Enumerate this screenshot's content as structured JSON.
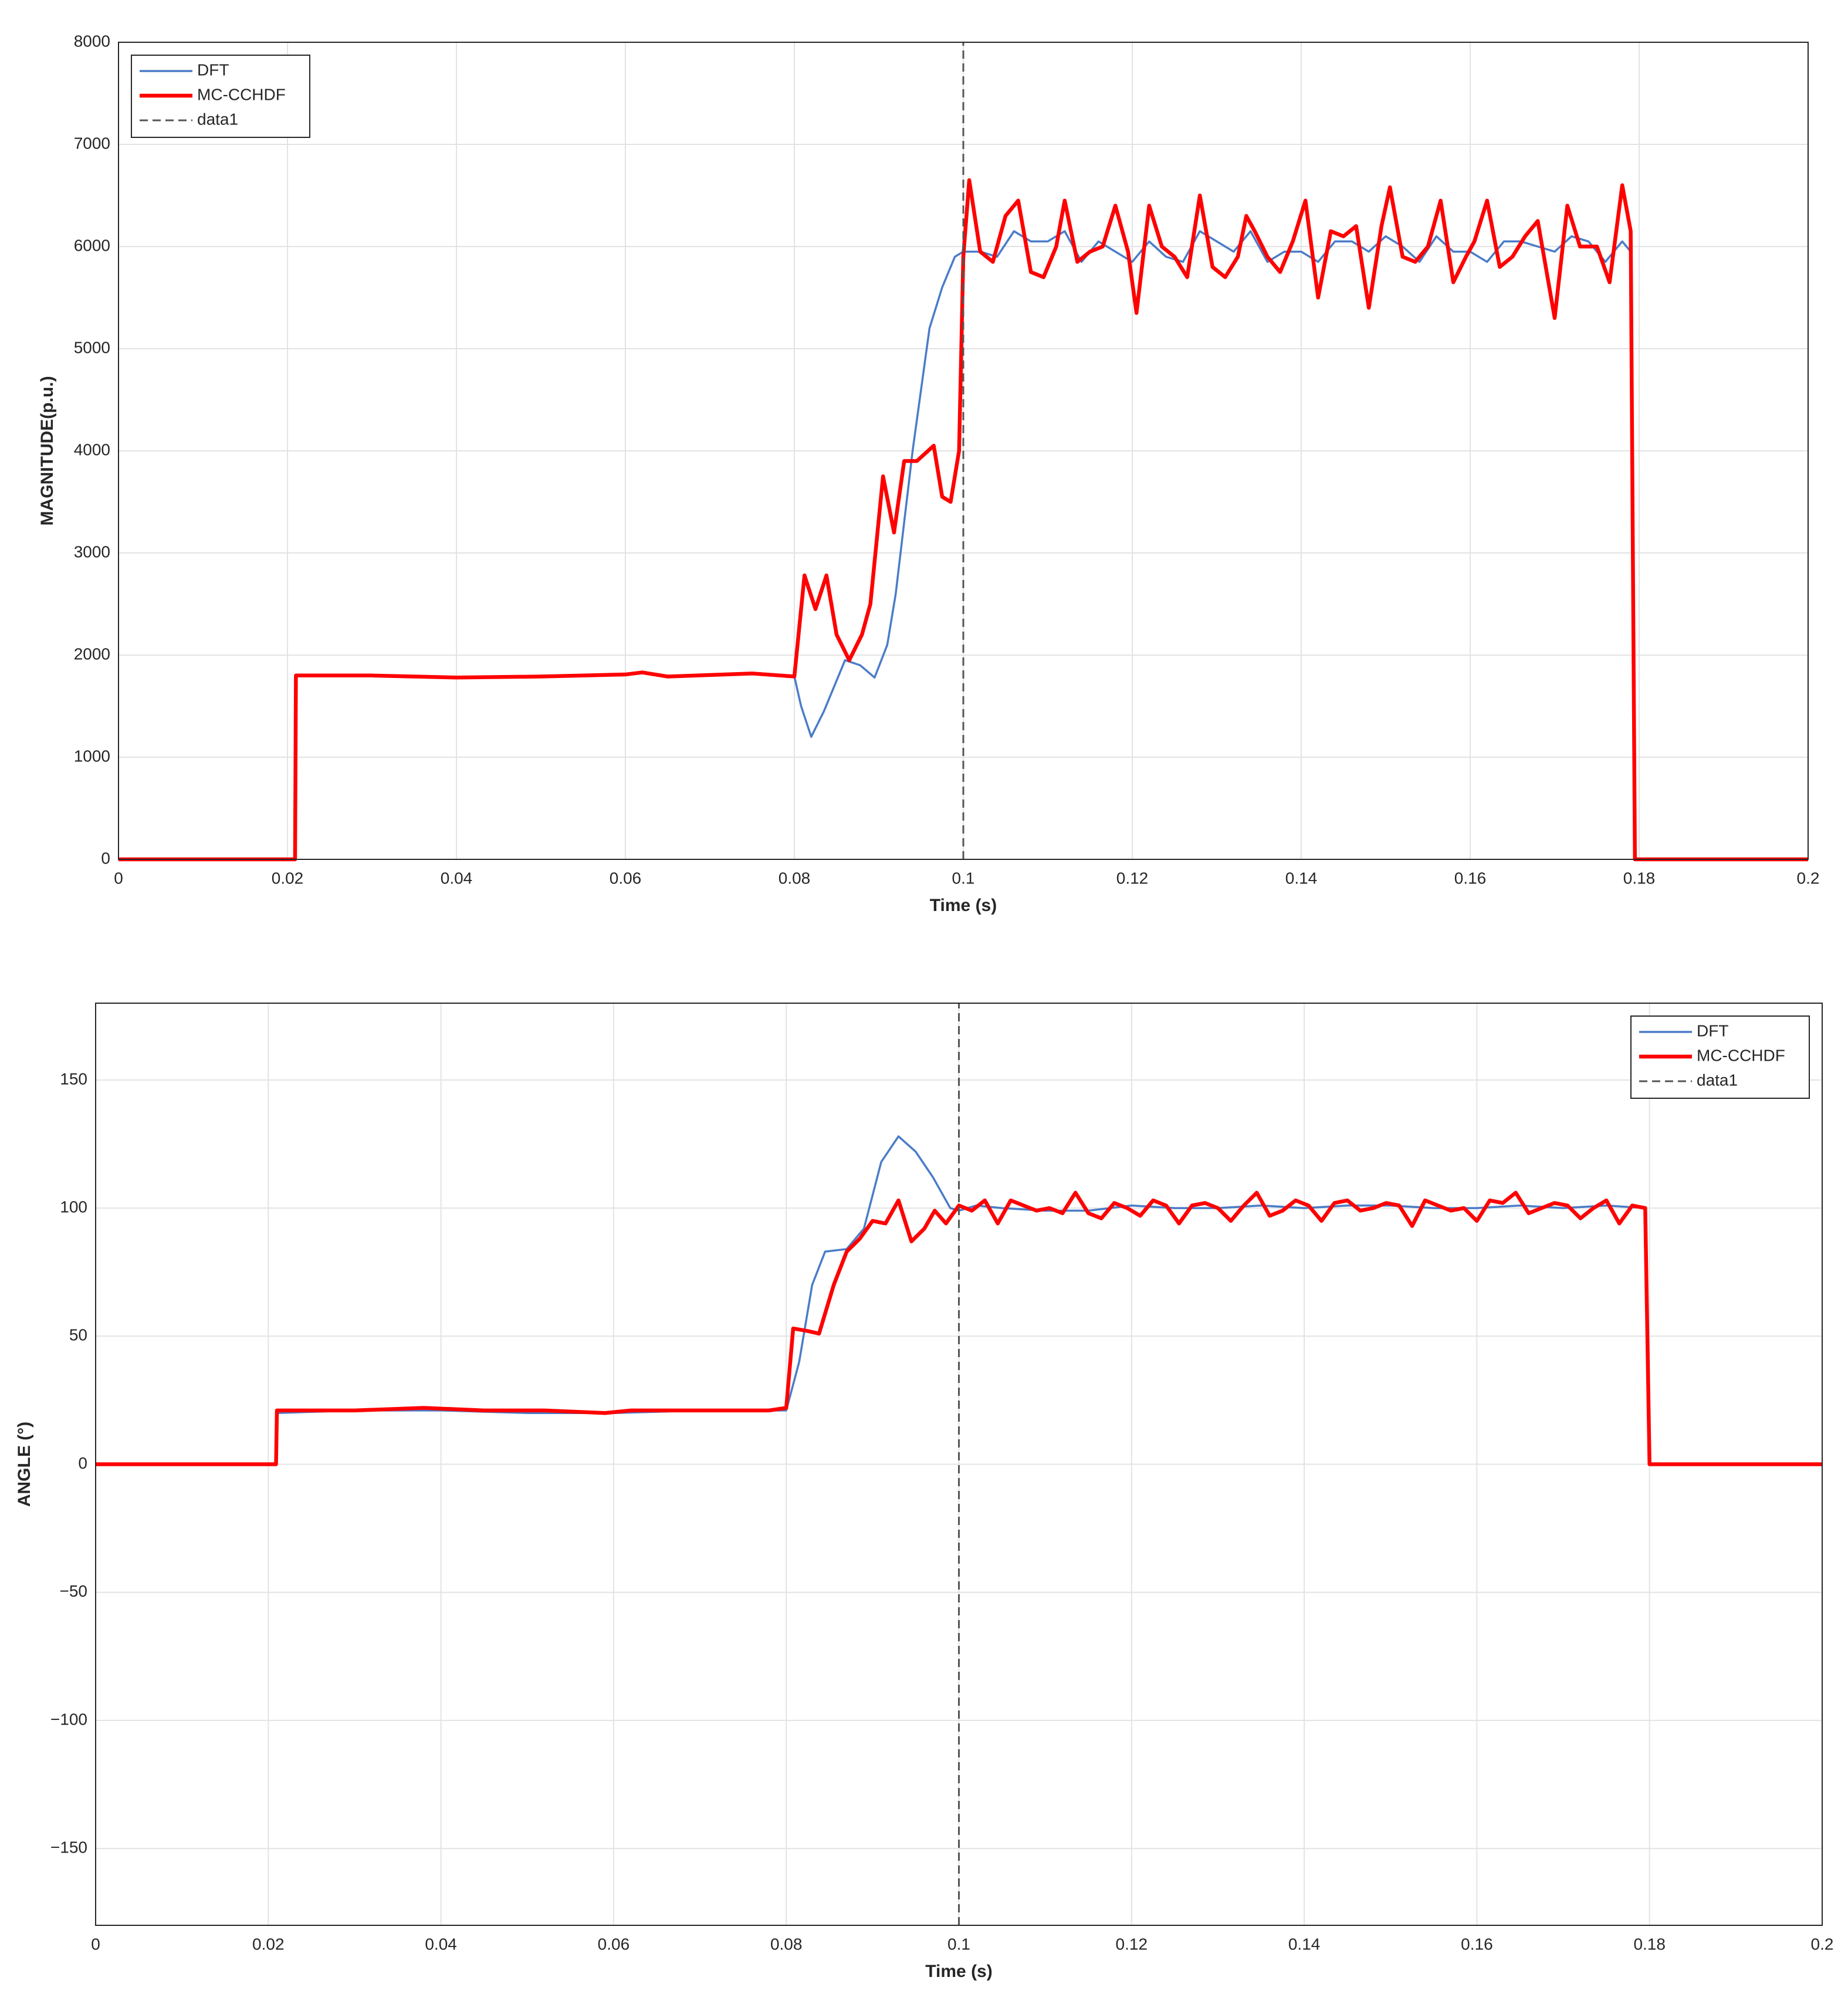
{
  "chart_data": [
    {
      "type": "line",
      "ylabel": "MAGNITUDE(p.u.)",
      "xlabel": "Time (s)",
      "xlim": [
        0,
        0.2
      ],
      "xticks": [
        0,
        0.02,
        0.04,
        0.06,
        0.08,
        0.1,
        0.12,
        0.14,
        0.16,
        0.18,
        0.2
      ],
      "ylim": [
        0,
        8000
      ],
      "yticks": [
        0,
        1000,
        2000,
        3000,
        4000,
        5000,
        6000,
        7000,
        8000
      ],
      "grid": true,
      "legend": "upper left",
      "series": [
        {
          "name": "DFT",
          "color": "#4a7cc8",
          "x": [
            0,
            0.0209,
            0.021,
            0.03,
            0.04,
            0.05,
            0.06,
            0.062,
            0.065,
            0.075,
            0.08,
            0.0808,
            0.082,
            0.0835,
            0.086,
            0.0878,
            0.0895,
            0.091,
            0.092,
            0.094,
            0.096,
            0.0975,
            0.099,
            0.1,
            0.102,
            0.104,
            0.106,
            0.108,
            0.11,
            0.112,
            0.114,
            0.116,
            0.118,
            0.12,
            0.122,
            0.124,
            0.126,
            0.128,
            0.13,
            0.132,
            0.134,
            0.136,
            0.138,
            0.14,
            0.142,
            0.144,
            0.146,
            0.148,
            0.15,
            0.152,
            0.154,
            0.156,
            0.158,
            0.16,
            0.162,
            0.164,
            0.166,
            0.168,
            0.17,
            0.172,
            0.174,
            0.176,
            0.178,
            0.179,
            0.1795,
            0.2
          ],
          "values": [
            0,
            0,
            1800,
            1800,
            1780,
            1790,
            1810,
            1830,
            1790,
            1820,
            1790,
            1500,
            1200,
            1450,
            1950,
            1900,
            1780,
            2100,
            2600,
            4000,
            5200,
            5600,
            5900,
            5950,
            5950,
            5900,
            6150,
            6050,
            6050,
            6150,
            5850,
            6050,
            5950,
            5850,
            6050,
            5900,
            5850,
            6150,
            6050,
            5950,
            6150,
            5850,
            5950,
            5950,
            5850,
            6050,
            6050,
            5950,
            6100,
            6000,
            5850,
            6100,
            5950,
            5950,
            5850,
            6050,
            6050,
            6000,
            5950,
            6100,
            6050,
            5850,
            6050,
            5950,
            0,
            0
          ]
        },
        {
          "name": "MC-CCHDF",
          "color": "#ff0000",
          "x": [
            0,
            0.0209,
            0.021,
            0.03,
            0.04,
            0.05,
            0.06,
            0.062,
            0.065,
            0.075,
            0.08,
            0.0812,
            0.0825,
            0.0838,
            0.085,
            0.0865,
            0.088,
            0.089,
            0.0905,
            0.0918,
            0.093,
            0.0945,
            0.0965,
            0.0975,
            0.0985,
            0.0995,
            0.1,
            0.1007,
            0.102,
            0.1035,
            0.105,
            0.1065,
            0.108,
            0.1095,
            0.111,
            0.112,
            0.1135,
            0.115,
            0.1165,
            0.118,
            0.1195,
            0.1205,
            0.122,
            0.1235,
            0.125,
            0.1265,
            0.128,
            0.1295,
            0.131,
            0.1325,
            0.1335,
            0.1345,
            0.136,
            0.1375,
            0.139,
            0.1405,
            0.142,
            0.1435,
            0.145,
            0.1465,
            0.148,
            0.1495,
            0.1505,
            0.152,
            0.1535,
            0.155,
            0.1565,
            0.158,
            0.1595,
            0.1605,
            0.162,
            0.1635,
            0.165,
            0.1665,
            0.168,
            0.17,
            0.1715,
            0.173,
            0.175,
            0.1765,
            0.178,
            0.179,
            0.1795,
            0.2
          ],
          "values": [
            0,
            0,
            1800,
            1800,
            1780,
            1790,
            1810,
            1830,
            1790,
            1820,
            1790,
            2780,
            2450,
            2780,
            2200,
            1950,
            2200,
            2500,
            3750,
            3200,
            3900,
            3900,
            4050,
            3550,
            3500,
            4000,
            5900,
            6650,
            5950,
            5850,
            6300,
            6450,
            5750,
            5700,
            6000,
            6450,
            5850,
            5950,
            6000,
            6400,
            5950,
            5350,
            6400,
            6000,
            5900,
            5700,
            6500,
            5800,
            5700,
            5900,
            6300,
            6150,
            5900,
            5750,
            6050,
            6450,
            5500,
            6150,
            6100,
            6200,
            5400,
            6200,
            6580,
            5900,
            5850,
            6000,
            6450,
            5650,
            5900,
            6050,
            6450,
            5800,
            5900,
            6100,
            6250,
            5300,
            6400,
            6000,
            6000,
            5650,
            6600,
            6150,
            0,
            0
          ]
        },
        {
          "name": "data1",
          "color": "#555555",
          "line_style": "dashed",
          "x": [
            0.1,
            0.1
          ],
          "values": [
            0,
            8000
          ]
        }
      ]
    },
    {
      "type": "line",
      "ylabel": "ANGLE (°)",
      "xlabel": "Time (s)",
      "xlim": [
        0,
        0.2
      ],
      "xticks": [
        0,
        0.02,
        0.04,
        0.06,
        0.08,
        0.1,
        0.12,
        0.14,
        0.16,
        0.18,
        0.2
      ],
      "ylim": [
        -180,
        180
      ],
      "yticks": [
        {
          "value": -150,
          "label": "−150"
        },
        {
          "value": -100,
          "label": "−100"
        },
        {
          "value": -50,
          "label": "−50"
        },
        0,
        50,
        100,
        150
      ],
      "grid": true,
      "legend": "upper right",
      "series": [
        {
          "name": "DFT",
          "color": "#4a7cc8",
          "x": [
            0,
            0.0209,
            0.021,
            0.03,
            0.04,
            0.05,
            0.06,
            0.07,
            0.08,
            0.0815,
            0.083,
            0.0845,
            0.087,
            0.089,
            0.091,
            0.093,
            0.095,
            0.097,
            0.099,
            0.1,
            0.102,
            0.105,
            0.11,
            0.115,
            0.12,
            0.125,
            0.13,
            0.135,
            0.14,
            0.145,
            0.15,
            0.155,
            0.16,
            0.165,
            0.17,
            0.175,
            0.1795,
            0.18,
            0.2
          ],
          "values": [
            0,
            0,
            20,
            21,
            21,
            20,
            20,
            21,
            21,
            40,
            70,
            83,
            84,
            92,
            118,
            128,
            122,
            112,
            100,
            99,
            101,
            100,
            99,
            99,
            101,
            100,
            100,
            101,
            100,
            101,
            101,
            100,
            100,
            101,
            100,
            101,
            100,
            0,
            0
          ]
        },
        {
          "name": "MC-CCHDF",
          "color": "#ff0000",
          "x": [
            0,
            0.0209,
            0.021,
            0.03,
            0.038,
            0.045,
            0.052,
            0.059,
            0.062,
            0.07,
            0.078,
            0.08,
            0.0808,
            0.0825,
            0.0838,
            0.0855,
            0.087,
            0.0885,
            0.09,
            0.0915,
            0.093,
            0.0945,
            0.096,
            0.0972,
            0.0985,
            0.1,
            0.1015,
            0.103,
            0.1045,
            0.106,
            0.1075,
            0.109,
            0.1105,
            0.112,
            0.1135,
            0.115,
            0.1165,
            0.118,
            0.1195,
            0.121,
            0.1225,
            0.124,
            0.1255,
            0.127,
            0.1285,
            0.13,
            0.1315,
            0.133,
            0.1345,
            0.136,
            0.1375,
            0.139,
            0.1405,
            0.142,
            0.1435,
            0.145,
            0.1465,
            0.148,
            0.1495,
            0.151,
            0.1525,
            0.154,
            0.1555,
            0.157,
            0.1585,
            0.16,
            0.1615,
            0.163,
            0.1645,
            0.166,
            0.1675,
            0.169,
            0.1705,
            0.172,
            0.1735,
            0.175,
            0.1765,
            0.178,
            0.1795,
            0.18,
            0.2
          ],
          "values": [
            0,
            0,
            21,
            21,
            22,
            21,
            21,
            20,
            21,
            21,
            21,
            22,
            53,
            52,
            51,
            70,
            83,
            88,
            95,
            94,
            103,
            87,
            92,
            99,
            94,
            101,
            99,
            103,
            94,
            103,
            101,
            99,
            100,
            98,
            106,
            98,
            96,
            102,
            100,
            97,
            103,
            101,
            94,
            101,
            102,
            100,
            95,
            101,
            106,
            97,
            99,
            103,
            101,
            95,
            102,
            103,
            99,
            100,
            102,
            101,
            93,
            103,
            101,
            99,
            100,
            95,
            103,
            102,
            106,
            98,
            100,
            102,
            101,
            96,
            100,
            103,
            94,
            101,
            100,
            0,
            0
          ]
        },
        {
          "name": "data1",
          "color": "#555555",
          "line_style": "dashed",
          "x": [
            0.1,
            0.1
          ],
          "values": [
            -180,
            180
          ]
        }
      ]
    }
  ]
}
